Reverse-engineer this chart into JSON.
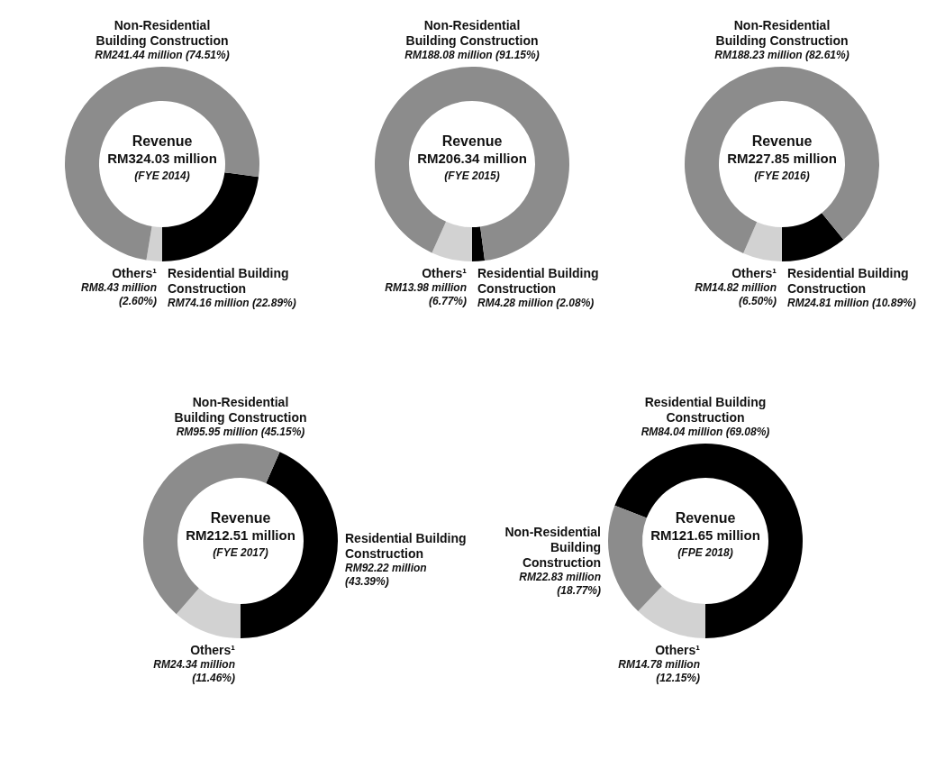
{
  "chart_data": [
    {
      "type": "donut",
      "title": "Revenue",
      "subtitle": "RM324.03 million",
      "annotations": [
        "(FYE 2014)"
      ],
      "categories": [
        "Residential Building Construction",
        "Others¹",
        "Non-Residential Building Construction"
      ],
      "values": [
        22.89,
        2.6,
        74.51
      ],
      "colors": [
        "#000000",
        "#d2d2d2",
        "#8c8c8c"
      ],
      "value_labels": [
        "RM74.16 million (22.89%)",
        "RM8.43 million (2.60%)",
        "RM241.44 million (74.51%)"
      ]
    },
    {
      "type": "donut",
      "title": "Revenue",
      "subtitle": "RM206.34 million",
      "annotations": [
        "(FYE 2015)"
      ],
      "categories": [
        "Residential Building Construction",
        "Others¹",
        "Non-Residential Building Construction"
      ],
      "values": [
        2.08,
        6.77,
        91.15
      ],
      "colors": [
        "#000000",
        "#d2d2d2",
        "#8c8c8c"
      ],
      "value_labels": [
        "RM4.28 million (2.08%)",
        "RM13.98 million (6.77%)",
        "RM188.08 million (91.15%)"
      ]
    },
    {
      "type": "donut",
      "title": "Revenue",
      "subtitle": "RM227.85 million",
      "annotations": [
        "(FYE 2016)"
      ],
      "categories": [
        "Residential Building Construction",
        "Others¹",
        "Non-Residential Building Construction"
      ],
      "values": [
        10.89,
        6.5,
        82.61
      ],
      "colors": [
        "#000000",
        "#d2d2d2",
        "#8c8c8c"
      ],
      "value_labels": [
        "RM24.81 million (10.89%)",
        "RM14.82 million (6.50%)",
        "RM188.23 million (82.61%)"
      ]
    },
    {
      "type": "donut",
      "title": "Revenue",
      "subtitle": "RM212.51 million",
      "annotations": [
        "(FYE 2017)"
      ],
      "categories": [
        "Residential Building Construction",
        "Others¹",
        "Non-Residential Building Construction"
      ],
      "values": [
        43.39,
        11.46,
        45.15
      ],
      "colors": [
        "#000000",
        "#d2d2d2",
        "#8c8c8c"
      ],
      "value_labels": [
        "RM92.22 million (43.39%)",
        "RM24.34 million (11.46%)",
        "RM95.95 million (45.15%)"
      ]
    },
    {
      "type": "donut",
      "title": "Revenue",
      "subtitle": "RM121.65 million",
      "annotations": [
        "(FPE 2018)"
      ],
      "categories": [
        "Residential Building Construction",
        "Others¹",
        "Non-Residential Building Construction"
      ],
      "values": [
        69.08,
        12.15,
        18.77
      ],
      "colors": [
        "#000000",
        "#d2d2d2",
        "#8c8c8c"
      ],
      "value_labels": [
        "RM84.04 million (69.08%)",
        "RM14.78 million (12.15%)",
        "RM22.83 million (18.77%)"
      ]
    }
  ]
}
